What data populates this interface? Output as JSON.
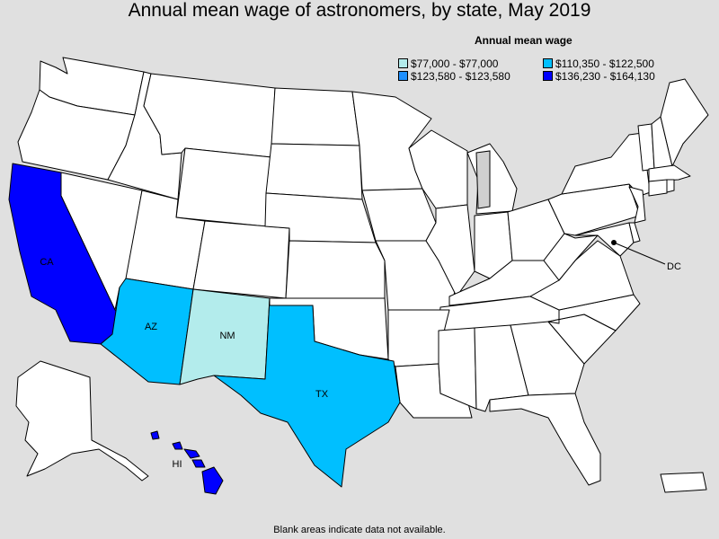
{
  "title": "Annual mean wage of astronomers, by state, May 2019",
  "legend": {
    "title": "Annual mean wage",
    "items": [
      {
        "label": "$77,000 - $77,000",
        "color": "#b3ecec"
      },
      {
        "label": "$110,350 - $122,500",
        "color": "#00bfff"
      },
      {
        "label": "$123,580 - $123,580",
        "color": "#1e90ff"
      },
      {
        "label": "$136,230 - $164,130",
        "color": "#0000ff"
      }
    ]
  },
  "footnote": "Blank areas indicate data not available.",
  "colors": {
    "no_data": "#ffffff",
    "background": "#e0e0e0",
    "lakes": "#d0d0d0"
  },
  "states": {
    "CA": {
      "label": "CA",
      "wage_range": "$136,230 - $164,130",
      "color": "#0000ff"
    },
    "AZ": {
      "label": "AZ",
      "wage_range": "$110,350 - $122,500",
      "color": "#00bfff"
    },
    "NM": {
      "label": "NM",
      "wage_range": "$77,000 - $77,000",
      "color": "#b3ecec"
    },
    "TX": {
      "label": "TX",
      "wage_range": "$110,350 - $122,500",
      "color": "#00bfff"
    },
    "HI": {
      "label": "HI",
      "wage_range": "$136,230 - $164,130",
      "color": "#0000ff"
    },
    "DC": {
      "label": "DC"
    }
  }
}
